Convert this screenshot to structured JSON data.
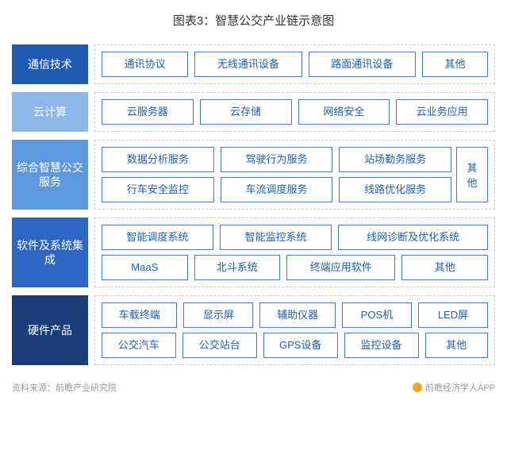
{
  "title": "图表3：智慧公交产业链示意图",
  "colors": {
    "border": "#3b7dd8",
    "text": "#1b5fb8",
    "dash": "#cccccc"
  },
  "rows": [
    {
      "category": "通信技术",
      "category_bg": "#225ab3",
      "rows": [
        [
          {
            "label": "通讯协议",
            "flex": 1
          },
          {
            "label": "无线通讯设备",
            "flex": 1.3
          },
          {
            "label": "路面通讯设备",
            "flex": 1.3
          },
          {
            "label": "其他",
            "flex": 0.7
          }
        ]
      ]
    },
    {
      "category": "云计算",
      "category_bg": "#8db8e8",
      "rows": [
        [
          {
            "label": "云服务器",
            "flex": 1
          },
          {
            "label": "云存储",
            "flex": 1
          },
          {
            "label": "网络安全",
            "flex": 1
          },
          {
            "label": "云业务应用",
            "flex": 1
          }
        ]
      ]
    },
    {
      "category": "综合智慧公交服务",
      "category_bg": "#5e98dd",
      "side": {
        "label": "其他"
      },
      "rows": [
        [
          {
            "label": "数据分析服务",
            "flex": 1
          },
          {
            "label": "驾驶行为服务",
            "flex": 1
          },
          {
            "label": "站场勤务服务",
            "flex": 1
          }
        ],
        [
          {
            "label": "行车安全监控",
            "flex": 1
          },
          {
            "label": "车流调度服务",
            "flex": 1
          },
          {
            "label": "线路优化服务",
            "flex": 1
          }
        ]
      ]
    },
    {
      "category": "软件及系统集成",
      "category_bg": "#2c67c4",
      "rows": [
        [
          {
            "label": "智能调度系统",
            "flex": 1
          },
          {
            "label": "智能监控系统",
            "flex": 1
          },
          {
            "label": "线网诊断及优化系统",
            "flex": 1.4
          }
        ],
        [
          {
            "label": "MaaS",
            "flex": 0.9
          },
          {
            "label": "北斗系统",
            "flex": 0.9
          },
          {
            "label": "终端应用软件",
            "flex": 1.2
          },
          {
            "label": "其他",
            "flex": 0.9
          }
        ]
      ]
    },
    {
      "category": "硬件产品",
      "category_bg": "#1a3e7a",
      "rows": [
        [
          {
            "label": "车载终端",
            "flex": 1
          },
          {
            "label": "显示屏",
            "flex": 0.9
          },
          {
            "label": "辅助仪器",
            "flex": 1
          },
          {
            "label": "POS机",
            "flex": 0.9
          },
          {
            "label": "LED屏",
            "flex": 0.9
          }
        ],
        [
          {
            "label": "公交汽车",
            "flex": 1
          },
          {
            "label": "公交站台",
            "flex": 1
          },
          {
            "label": "GPS设备",
            "flex": 1
          },
          {
            "label": "监控设备",
            "flex": 1
          },
          {
            "label": "其他",
            "flex": 0.8
          }
        ]
      ]
    }
  ],
  "footer": {
    "left": "资料来源：前瞻产业研究院",
    "right": "前瞻经济学人APP"
  }
}
